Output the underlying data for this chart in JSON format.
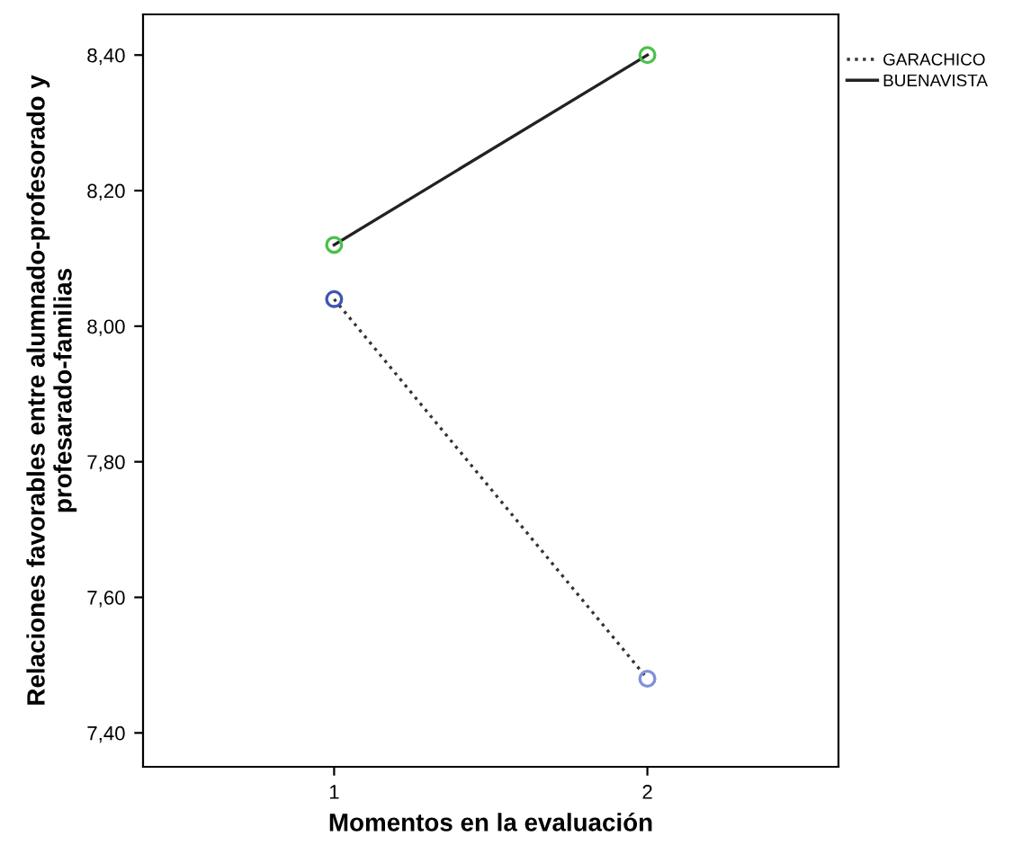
{
  "chart_data": {
    "type": "line",
    "xlabel": "Momentos en la evaluación",
    "ylabel": "Relaciones favorables entre alumnado-profesorado y\nprofesarado-familias",
    "x": [
      1,
      2
    ],
    "xlim": [
      0.39,
      2.61
    ],
    "xticks": [
      1,
      2
    ],
    "ylim": [
      7.35,
      8.46
    ],
    "yticks": [
      {
        "value": 7.4,
        "label": "7,40"
      },
      {
        "value": 7.6,
        "label": "7,60"
      },
      {
        "value": 7.8,
        "label": "7,80"
      },
      {
        "value": 8.0,
        "label": "8,00"
      },
      {
        "value": 8.2,
        "label": "8,20"
      },
      {
        "value": 8.4,
        "label": "8,40"
      }
    ],
    "grid": false,
    "legend": "top right",
    "marker": "circle",
    "series": [
      {
        "name": "GARACHICO",
        "color": "#333333",
        "colors": [
          "#3f55b5",
          "#8090d8"
        ],
        "line_style": "dotted",
        "values": [
          8.04,
          7.48
        ]
      },
      {
        "name": "BUENAVISTA",
        "color": "#222222",
        "colors": [
          "#4cc04c",
          "#4cc04c"
        ],
        "line_style": "solid",
        "values": [
          8.12,
          8.4
        ]
      }
    ]
  }
}
